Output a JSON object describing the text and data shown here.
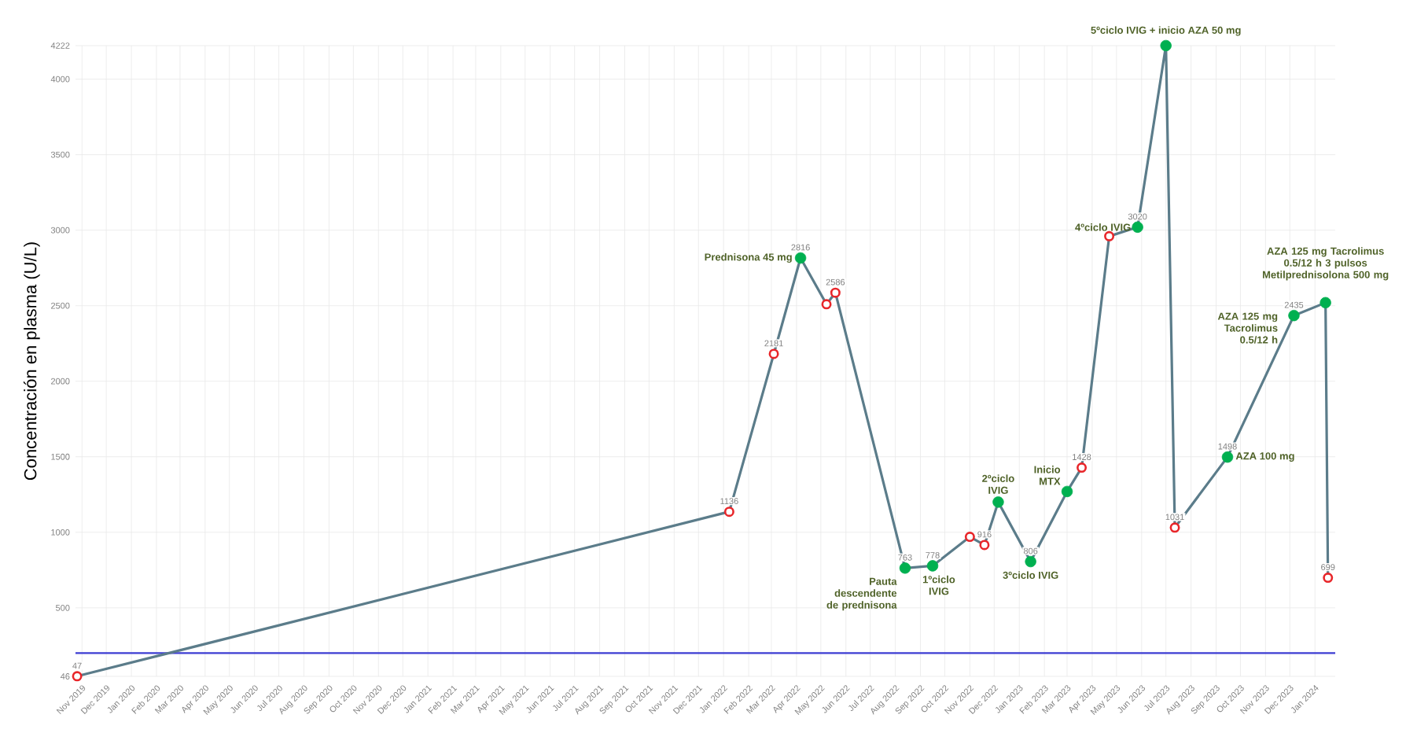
{
  "chart_data": {
    "type": "line",
    "ylabel": "Concentración en plasma (U/L)",
    "xlim": [
      "2019-10-24",
      "2024-01-26"
    ],
    "xticks": [
      {
        "value": "2019-11-01",
        "label": "Nov 2019"
      },
      {
        "value": "2019-12-01",
        "label": "Dec 2019"
      },
      {
        "value": "2020-01-01",
        "label": "Jan 2020"
      },
      {
        "value": "2020-02-01",
        "label": "Feb 2020"
      },
      {
        "value": "2020-03-01",
        "label": "Mar 2020"
      },
      {
        "value": "2020-04-01",
        "label": "Apr 2020"
      },
      {
        "value": "2020-05-01",
        "label": "May 2020"
      },
      {
        "value": "2020-06-01",
        "label": "Jun 2020"
      },
      {
        "value": "2020-07-01",
        "label": "Jul 2020"
      },
      {
        "value": "2020-08-01",
        "label": "Aug 2020"
      },
      {
        "value": "2020-09-01",
        "label": "Sep 2020"
      },
      {
        "value": "2020-10-01",
        "label": "Oct 2020"
      },
      {
        "value": "2020-11-01",
        "label": "Nov 2020"
      },
      {
        "value": "2020-12-01",
        "label": "Dec 2020"
      },
      {
        "value": "2021-01-01",
        "label": "Jan 2021"
      },
      {
        "value": "2021-02-01",
        "label": "Feb 2021"
      },
      {
        "value": "2021-03-01",
        "label": "Mar 2021"
      },
      {
        "value": "2021-04-01",
        "label": "Apr 2021"
      },
      {
        "value": "2021-05-01",
        "label": "May 2021"
      },
      {
        "value": "2021-06-01",
        "label": "Jun 2021"
      },
      {
        "value": "2021-07-01",
        "label": "Jul 2021"
      },
      {
        "value": "2021-08-01",
        "label": "Aug 2021"
      },
      {
        "value": "2021-09-01",
        "label": "Sep 2021"
      },
      {
        "value": "2021-10-01",
        "label": "Oct 2021"
      },
      {
        "value": "2021-11-01",
        "label": "Nov 2021"
      },
      {
        "value": "2021-12-01",
        "label": "Dec 2021"
      },
      {
        "value": "2022-01-01",
        "label": "Jan 2022"
      },
      {
        "value": "2022-02-01",
        "label": "Feb 2022"
      },
      {
        "value": "2022-03-01",
        "label": "Mar 2022"
      },
      {
        "value": "2022-04-01",
        "label": "Apr 2022"
      },
      {
        "value": "2022-05-01",
        "label": "May 2022"
      },
      {
        "value": "2022-06-01",
        "label": "Jun 2022"
      },
      {
        "value": "2022-07-01",
        "label": "Jul 2022"
      },
      {
        "value": "2022-08-01",
        "label": "Aug 2022"
      },
      {
        "value": "2022-09-01",
        "label": "Sep 2022"
      },
      {
        "value": "2022-10-01",
        "label": "Oct 2022"
      },
      {
        "value": "2022-11-01",
        "label": "Nov 2022"
      },
      {
        "value": "2022-12-01",
        "label": "Dec 2022"
      },
      {
        "value": "2023-01-01",
        "label": "Jan 2023"
      },
      {
        "value": "2023-02-01",
        "label": "Feb 2023"
      },
      {
        "value": "2023-03-01",
        "label": "Mar 2023"
      },
      {
        "value": "2023-04-01",
        "label": "Apr 2023"
      },
      {
        "value": "2023-05-01",
        "label": "May 2023"
      },
      {
        "value": "2023-06-01",
        "label": "Jun 2023"
      },
      {
        "value": "2023-07-01",
        "label": "Jul 2023"
      },
      {
        "value": "2023-08-01",
        "label": "Aug 2023"
      },
      {
        "value": "2023-09-01",
        "label": "Sep 2023"
      },
      {
        "value": "2023-10-01",
        "label": "Oct 2023"
      },
      {
        "value": "2023-11-01",
        "label": "Nov 2023"
      },
      {
        "value": "2023-12-01",
        "label": "Dec 2023"
      },
      {
        "value": "2024-01-01",
        "label": "Jan 2024"
      }
    ],
    "ylim": [
      46,
      4222
    ],
    "yticks": [
      46,
      500,
      1000,
      1500,
      2000,
      2500,
      3000,
      3500,
      4000,
      4222
    ],
    "grid": true,
    "series": [
      {
        "type": "line",
        "color": "#5b7c8a",
        "x": [
          "2019-10-26",
          "2022-01-08",
          "2022-03-04",
          "2022-04-06",
          "2022-05-08",
          "2022-05-19",
          "2022-08-13",
          "2022-09-16",
          "2022-11-01",
          "2022-11-19",
          "2022-12-06",
          "2023-01-15",
          "2023-03-01",
          "2023-03-19",
          "2023-04-22",
          "2023-05-27",
          "2023-07-01",
          "2023-07-12",
          "2023-09-15",
          "2023-12-06",
          "2024-01-14",
          "2024-01-17"
        ],
        "values": [
          47,
          1136,
          2181,
          2816,
          2510,
          2586,
          763,
          778,
          970,
          916,
          1200,
          806,
          1270,
          1428,
          2960,
          3020,
          4222,
          1031,
          1498,
          2435,
          2520,
          699
        ],
        "value_labels": [
          "47",
          "1136",
          "2181",
          "2816",
          null,
          "2586",
          "763",
          "778",
          null,
          "916",
          null,
          "806",
          null,
          "1428",
          null,
          "3020",
          null,
          "1031",
          "1498",
          "2435",
          null,
          "699"
        ]
      },
      {
        "type": "scatter",
        "color": "#e8262a",
        "marker": "circle",
        "x": [
          "2019-10-26",
          "2022-01-08",
          "2022-03-04",
          "2022-05-08",
          "2022-05-19",
          "2022-11-01",
          "2022-11-19",
          "2023-03-19",
          "2023-04-22",
          "2023-07-12",
          "2024-01-17"
        ],
        "values": [
          47,
          1136,
          2181,
          2510,
          2586,
          970,
          916,
          1428,
          2960,
          1031,
          699
        ]
      },
      {
        "type": "scatter",
        "color": "#00b050",
        "marker": "circle",
        "x": [
          "2022-04-06",
          "2022-08-13",
          "2022-09-16",
          "2022-12-06",
          "2023-01-15",
          "2023-03-01",
          "2023-05-27",
          "2023-07-01",
          "2023-09-15",
          "2023-12-06",
          "2024-01-14"
        ],
        "values": [
          2816,
          763,
          778,
          1200,
          806,
          1270,
          3020,
          4222,
          1498,
          2435,
          2520
        ]
      }
    ],
    "ref_lines": [
      {
        "axis": "y",
        "value": 200,
        "color": "#3c3cd2"
      }
    ],
    "annotations": [
      {
        "text": "Prednisona 45 mg",
        "x": "2022-04-06",
        "y": 2816
      },
      {
        "text": "Pauta descendente de prednisona",
        "x": "2022-08-13",
        "y": 763
      },
      {
        "text": "1ºciclo IVIG",
        "x": "2022-09-16",
        "y": 778
      },
      {
        "text": "2ºciclo IVIG",
        "x": "2022-12-06",
        "y": 1200
      },
      {
        "text": "3ºciclo IVIG",
        "x": "2023-01-15",
        "y": 806
      },
      {
        "text": "Inicio MTX",
        "x": "2023-03-01",
        "y": 1270
      },
      {
        "text": "4ºciclo IVIG",
        "x": "2023-05-27",
        "y": 3020
      },
      {
        "text": "5ºciclo IVIG + inicio AZA 50 mg",
        "x": "2023-07-01",
        "y": 4222
      },
      {
        "text": "AZA 100 mg",
        "x": "2023-09-15",
        "y": 1498
      },
      {
        "text": "AZA 125 mg Tacrolimus 0.5/12 h",
        "x": "2023-12-06",
        "y": 2435
      },
      {
        "text": "AZA 125 mg Tacrolimus 0.5/12 h 3 pulsos Metilprednisolona 500 mg",
        "x": "2024-01-14",
        "y": 2520
      }
    ]
  }
}
